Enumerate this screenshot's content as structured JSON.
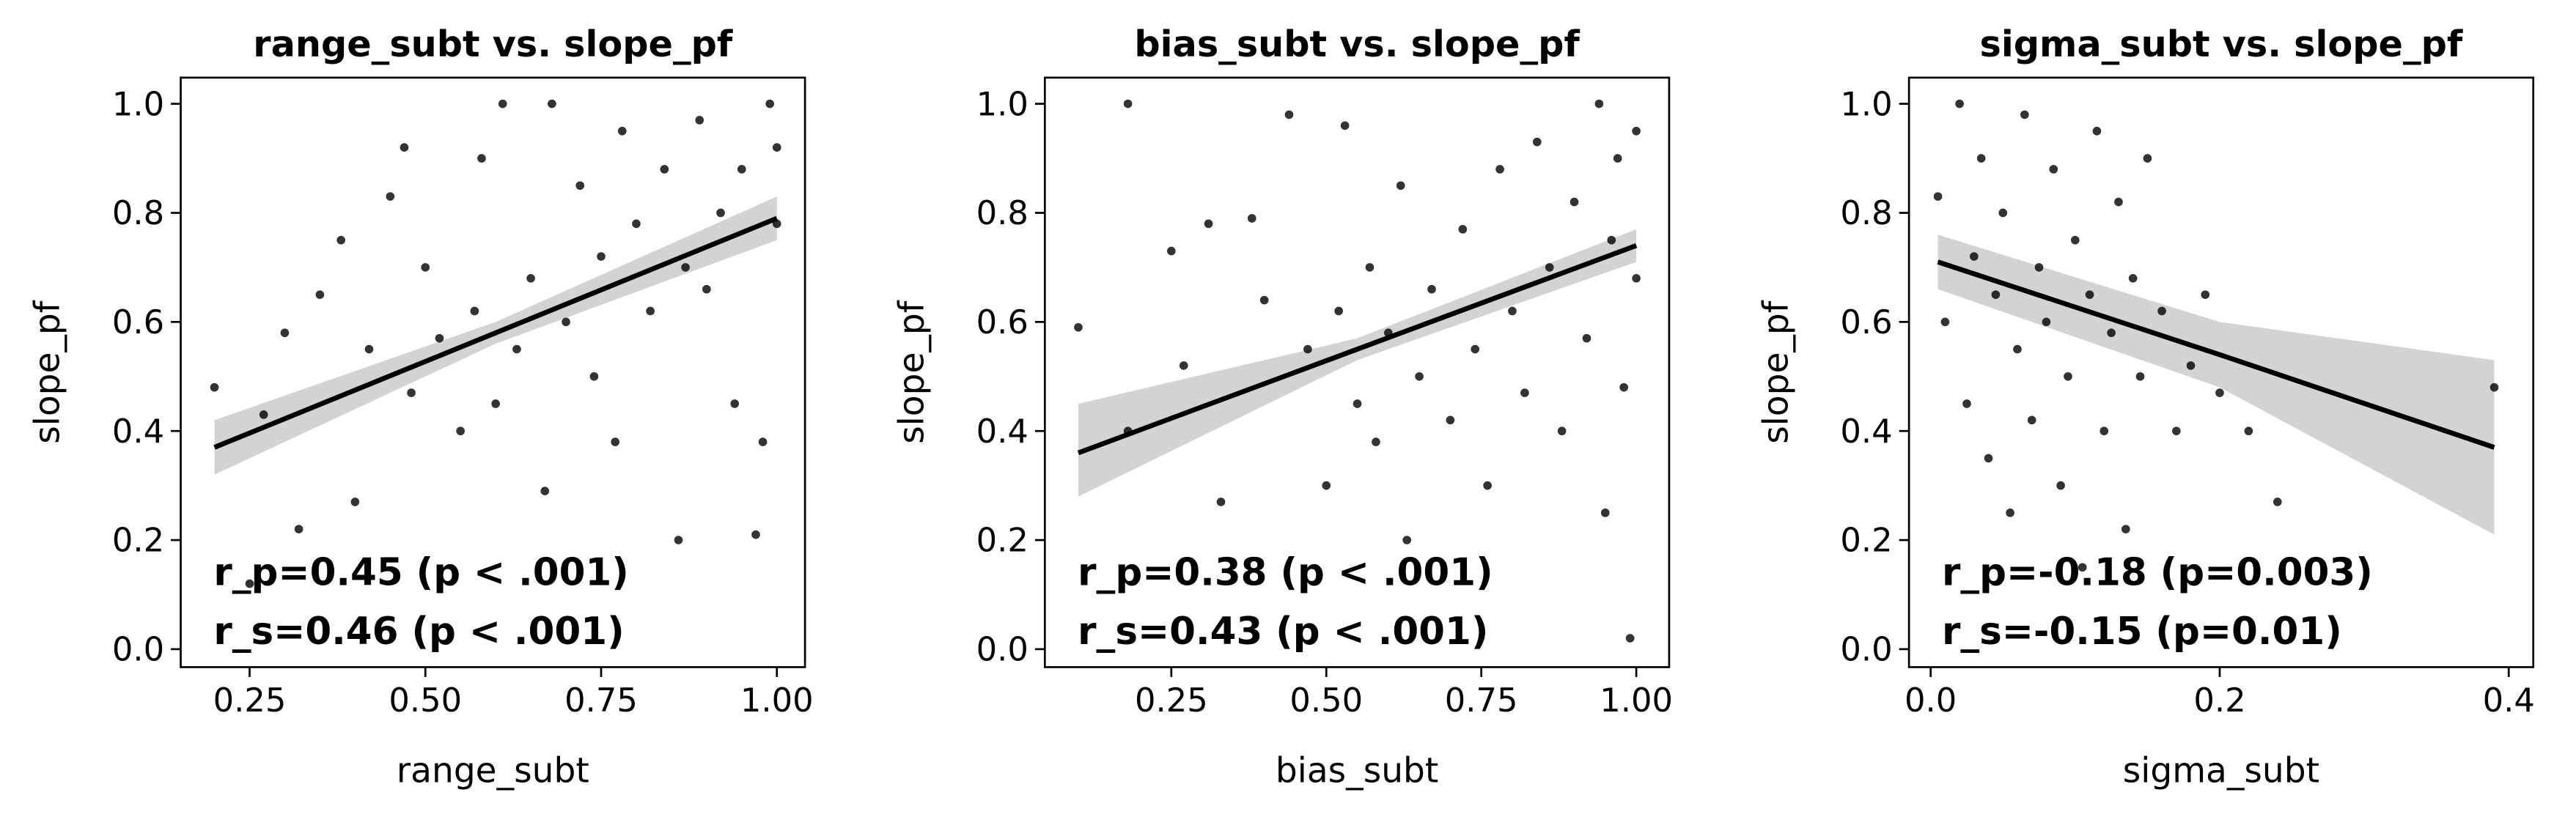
{
  "chart_data": [
    {
      "type": "scatter",
      "title": "range_subt vs. slope_pf",
      "x_label": "range_subt",
      "y_label": "slope_pf",
      "xlim": [
        0.152,
        1.04
      ],
      "ylim": [
        -0.033,
        1.048
      ],
      "xticks": [
        0.25,
        {
          "value": 0.5,
          "label": "0.50"
        },
        0.75,
        {
          "value": 1.0,
          "label": "1.00"
        }
      ],
      "yticks": [
        {
          "value": 0,
          "label": "0.0"
        },
        0.2,
        0.4,
        0.6,
        0.8,
        {
          "value": 1.0,
          "label": "1.0"
        }
      ],
      "color": "#000000",
      "fit_color": "#000000",
      "band_color": "#d3d3d3",
      "annotations": [
        "r_p=0.45 (p < .001)",
        "r_s=0.46 (p < .001)"
      ],
      "points": {
        "x": [
          0.2,
          0.25,
          0.27,
          0.3,
          0.32,
          0.35,
          0.38,
          0.4,
          0.42,
          0.45,
          0.47,
          0.48,
          0.5,
          0.52,
          0.55,
          0.57,
          0.58,
          0.6,
          0.61,
          0.63,
          0.65,
          0.67,
          0.68,
          0.7,
          0.72,
          0.74,
          0.75,
          0.77,
          0.78,
          0.8,
          0.82,
          0.84,
          0.86,
          0.87,
          0.89,
          0.9,
          0.92,
          0.94,
          0.95,
          0.97,
          0.98,
          0.99,
          1.0,
          1.0
        ],
        "y": [
          0.48,
          0.12,
          0.43,
          0.58,
          0.22,
          0.65,
          0.75,
          0.27,
          0.55,
          0.83,
          0.92,
          0.47,
          0.7,
          0.57,
          0.4,
          0.62,
          0.9,
          0.45,
          1.0,
          0.55,
          0.68,
          0.29,
          1.0,
          0.6,
          0.85,
          0.5,
          0.72,
          0.38,
          0.95,
          0.78,
          0.62,
          0.88,
          0.2,
          0.7,
          0.97,
          0.66,
          0.8,
          0.45,
          0.88,
          0.21,
          0.38,
          1.0,
          0.92,
          0.78
        ]
      },
      "fit": {
        "x": [
          0.2,
          0.6,
          1.0
        ],
        "y": [
          0.37,
          0.58,
          0.79
        ],
        "lower": [
          0.32,
          0.56,
          0.75
        ],
        "upper": [
          0.42,
          0.6,
          0.83
        ]
      }
    },
    {
      "type": "scatter",
      "title": "bias_subt vs. slope_pf",
      "x_label": "bias_subt",
      "y_label": "slope_pf",
      "xlim": [
        0.046,
        1.053
      ],
      "ylim": [
        -0.033,
        1.048
      ],
      "xticks": [
        0.25,
        {
          "value": 0.5,
          "label": "0.50"
        },
        0.75,
        {
          "value": 1.0,
          "label": "1.00"
        }
      ],
      "yticks": [
        {
          "value": 0,
          "label": "0.0"
        },
        0.2,
        0.4,
        0.6,
        0.8,
        {
          "value": 1.0,
          "label": "1.0"
        }
      ],
      "color": "#000000",
      "fit_color": "#000000",
      "band_color": "#d3d3d3",
      "annotations": [
        "r_p=0.38 (p < .001)",
        "r_s=0.43 (p < .001)"
      ],
      "points": {
        "x": [
          0.1,
          0.18,
          0.18,
          0.25,
          0.27,
          0.31,
          0.33,
          0.38,
          0.4,
          0.44,
          0.47,
          0.5,
          0.52,
          0.53,
          0.55,
          0.57,
          0.58,
          0.6,
          0.62,
          0.63,
          0.65,
          0.67,
          0.7,
          0.72,
          0.74,
          0.76,
          0.78,
          0.8,
          0.82,
          0.84,
          0.86,
          0.88,
          0.9,
          0.92,
          0.94,
          0.95,
          0.96,
          0.97,
          0.98,
          0.99,
          1.0,
          1.0
        ],
        "y": [
          0.59,
          1.0,
          0.4,
          0.73,
          0.52,
          0.78,
          0.27,
          0.79,
          0.64,
          0.98,
          0.55,
          0.3,
          0.62,
          0.96,
          0.45,
          0.7,
          0.38,
          0.58,
          0.85,
          0.2,
          0.5,
          0.66,
          0.42,
          0.77,
          0.55,
          0.3,
          0.88,
          0.62,
          0.47,
          0.93,
          0.7,
          0.4,
          0.82,
          0.57,
          1.0,
          0.25,
          0.75,
          0.9,
          0.48,
          0.02,
          0.95,
          0.68
        ]
      },
      "fit": {
        "x": [
          0.1,
          0.55,
          1.0
        ],
        "y": [
          0.36,
          0.55,
          0.74
        ],
        "lower": [
          0.28,
          0.53,
          0.71
        ],
        "upper": [
          0.45,
          0.57,
          0.77
        ]
      }
    },
    {
      "type": "scatter",
      "title": "sigma_subt vs. slope_pf",
      "x_label": "sigma_subt",
      "y_label": "slope_pf",
      "xlim": [
        -0.015,
        0.417
      ],
      "ylim": [
        -0.033,
        1.048
      ],
      "xticks": [
        {
          "value": 0,
          "label": "0.0"
        },
        0.2,
        0.4
      ],
      "yticks": [
        {
          "value": 0,
          "label": "0.0"
        },
        0.2,
        0.4,
        0.6,
        0.8,
        {
          "value": 1.0,
          "label": "1.0"
        }
      ],
      "color": "#000000",
      "fit_color": "#000000",
      "band_color": "#d3d3d3",
      "annotations": [
        "r_p=-0.18 (p=0.003)",
        "r_s=-0.15 (p=0.01)"
      ],
      "points": {
        "x": [
          0.005,
          0.01,
          0.02,
          0.025,
          0.03,
          0.035,
          0.04,
          0.045,
          0.05,
          0.055,
          0.06,
          0.065,
          0.07,
          0.075,
          0.08,
          0.085,
          0.09,
          0.095,
          0.1,
          0.105,
          0.11,
          0.115,
          0.12,
          0.125,
          0.13,
          0.135,
          0.14,
          0.145,
          0.15,
          0.16,
          0.17,
          0.18,
          0.19,
          0.2,
          0.22,
          0.24,
          0.39
        ],
        "y": [
          0.83,
          0.6,
          1.0,
          0.45,
          0.72,
          0.9,
          0.35,
          0.65,
          0.8,
          0.25,
          0.55,
          0.98,
          0.42,
          0.7,
          0.6,
          0.88,
          0.3,
          0.5,
          0.75,
          0.15,
          0.65,
          0.95,
          0.4,
          0.58,
          0.82,
          0.22,
          0.68,
          0.5,
          0.9,
          0.62,
          0.4,
          0.52,
          0.65,
          0.47,
          0.4,
          0.27,
          0.48
        ]
      },
      "fit": {
        "x": [
          0.005,
          0.2,
          0.39
        ],
        "y": [
          0.71,
          0.54,
          0.37
        ],
        "lower": [
          0.66,
          0.48,
          0.21
        ],
        "upper": [
          0.76,
          0.6,
          0.53
        ]
      }
    }
  ]
}
